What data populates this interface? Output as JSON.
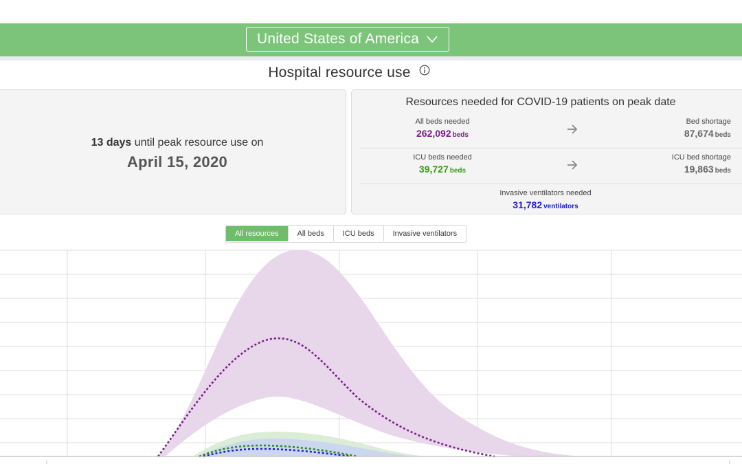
{
  "header": {
    "country": "United States of America",
    "chevron_icon": "chevron-down-icon",
    "background_color": "#7cc47a"
  },
  "title": {
    "text": "Hospital resource use",
    "info_icon": "info-icon"
  },
  "peak": {
    "days": "13 days",
    "text": "until peak resource use on",
    "date": "April 15, 2020"
  },
  "resources": {
    "title": "Resources needed for COVID-19 patients on peak date",
    "all_beds": {
      "label": "All beds needed",
      "value": "262,092",
      "unit": "beds",
      "color": "#7a1d8a"
    },
    "bed_shortage": {
      "label": "Bed shortage",
      "value": "87,674",
      "unit": "beds"
    },
    "icu_beds": {
      "label": "ICU beds needed",
      "value": "39,727",
      "unit": "beds",
      "color": "#3a9a1a"
    },
    "icu_shortage": {
      "label": "ICU bed shortage",
      "value": "19,863",
      "unit": "beds"
    },
    "ventilators": {
      "label": "Invasive ventilators needed",
      "value": "31,782",
      "unit": "ventilators",
      "color": "#2121c9"
    },
    "arrow_icon": "arrow-right-icon"
  },
  "toggles": {
    "items": [
      {
        "label": "All resources",
        "active": true
      },
      {
        "label": "All beds",
        "active": false
      },
      {
        "label": "ICU beds",
        "active": false
      },
      {
        "label": "Invasive ventilators",
        "active": false
      }
    ]
  },
  "chart": {
    "series": [
      {
        "color": "#7a1d8a",
        "band_color": "#e8d6ea"
      },
      {
        "color": "#2d8a1f",
        "band_color": "#d9ecd4"
      },
      {
        "color": "#2121c9",
        "band_color": "#c9d4f2"
      }
    ]
  }
}
